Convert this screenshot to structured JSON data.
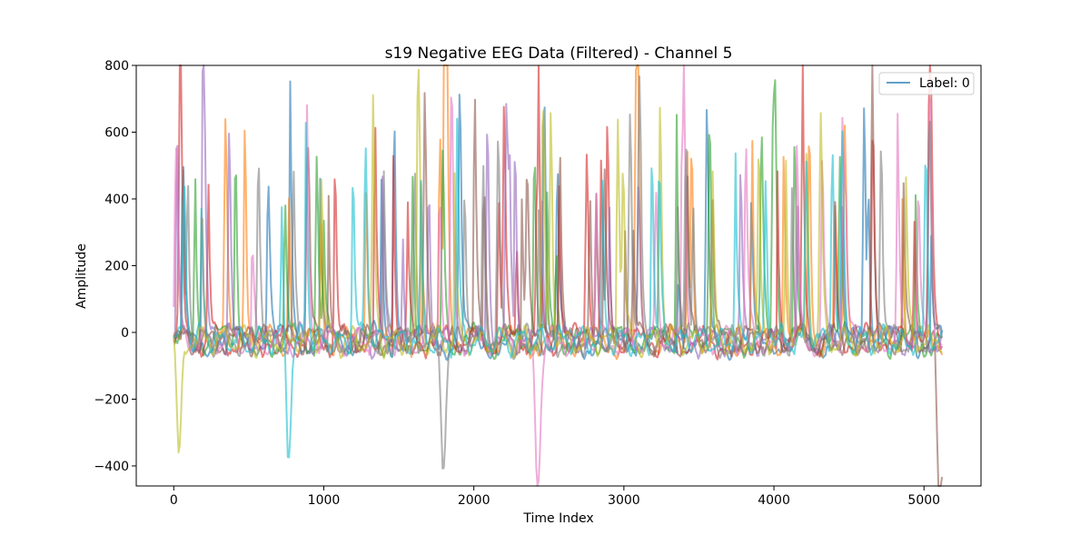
{
  "chart_data": {
    "type": "line",
    "title": "s19 Negative EEG Data (Filtered) - Channel 5",
    "xlabel": "Time Index",
    "ylabel": "Amplitude",
    "xlim": [
      -250,
      5380
    ],
    "ylim": [
      -460,
      800
    ],
    "xticks": [
      0,
      1000,
      2000,
      3000,
      4000,
      5000
    ],
    "yticks": [
      -400,
      -200,
      0,
      200,
      400,
      600,
      800
    ],
    "grid": false,
    "legend": {
      "placement": "top-right",
      "entries": [
        {
          "label": "Label: 0",
          "color": "#1f77b4"
        }
      ]
    },
    "n_samples": 5120,
    "series_colors": [
      "#1f77b4",
      "#ff7f0e",
      "#2ca02c",
      "#d62728",
      "#9467bd",
      "#8c564b",
      "#e377c2",
      "#7f7f7f",
      "#bcbd22",
      "#17becf"
    ],
    "series_count": 10,
    "notable_extremes": [
      {
        "x": 775,
        "y": 740
      },
      {
        "x": 1820,
        "y": 718
      },
      {
        "x": 3350,
        "y": 710
      },
      {
        "x": 2430,
        "y": 700
      },
      {
        "x": 20,
        "y": 640
      },
      {
        "x": 5100,
        "y": -410
      },
      {
        "x": 2420,
        "y": -295
      },
      {
        "x": 1790,
        "y": -240
      },
      {
        "x": 30,
        "y": -230
      },
      {
        "x": 760,
        "y": -220
      }
    ]
  }
}
